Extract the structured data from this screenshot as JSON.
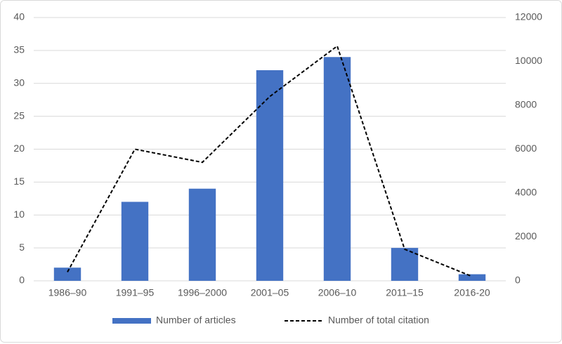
{
  "chart_data": {
    "type": "bar",
    "categories": [
      "1986–90",
      "1991–95",
      "1996–2000",
      "2001–05",
      "2006–10",
      "2011–15",
      "2016-20"
    ],
    "series": [
      {
        "name": "Number of articles",
        "type": "bar",
        "color": "#4472c4",
        "values": [
          2,
          12,
          14,
          32,
          34,
          5,
          1
        ]
      },
      {
        "name": "Number of total citation",
        "type": "line",
        "axis": "y2",
        "color": "#000000",
        "dashed": true,
        "values": [
          400,
          6000,
          5400,
          8400,
          10700,
          1440,
          200
        ]
      }
    ],
    "ylim": [
      0,
      40
    ],
    "yticks": [
      0,
      5,
      10,
      15,
      20,
      25,
      30,
      35,
      40
    ],
    "y2lim": [
      0,
      12000
    ],
    "y2ticks": [
      0,
      2000,
      4000,
      6000,
      8000,
      10000,
      12000
    ],
    "grid": true,
    "legend": "bottom"
  }
}
